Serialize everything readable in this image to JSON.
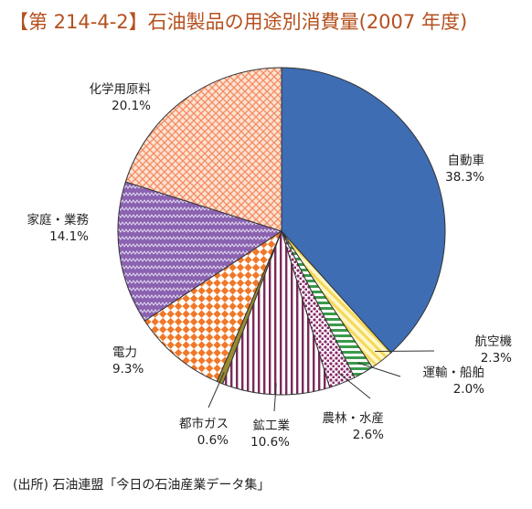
{
  "title": "【第 214-4-2】石油製品の用途別消費量(2007 年度)",
  "source": "(出所) 石油連盟「今日の石油産業データ集」",
  "chart_data": {
    "type": "pie",
    "title": "【第 214-4-2】石油製品の用途別消費量(2007 年度)",
    "start_angle_deg": 0,
    "direction": "clockwise",
    "slices": [
      {
        "label": "自動車",
        "value": 38.3,
        "value_label": "38.3%",
        "color": "#3f6db4",
        "pattern": "solid"
      },
      {
        "label": "航空機",
        "value": 2.3,
        "value_label": "2.3%",
        "color": "#f5d85a",
        "pattern": "diagonal-stripes"
      },
      {
        "label": "運輸・船舶",
        "value": 2.0,
        "value_label": "2.0%",
        "color": "#3a9a4a",
        "pattern": "horizontal-stripes"
      },
      {
        "label": "農林・水産",
        "value": 2.6,
        "value_label": "2.6%",
        "color": "#8a2a6a",
        "pattern": "dots"
      },
      {
        "label": "鉱工業",
        "value": 10.6,
        "value_label": "10.6%",
        "color": "#7a2a5a",
        "pattern": "vertical-stripes"
      },
      {
        "label": "都市ガス",
        "value": 0.6,
        "value_label": "0.6%",
        "color": "#9a8a30",
        "pattern": "solid"
      },
      {
        "label": "電力",
        "value": 9.3,
        "value_label": "9.3%",
        "color": "#f07828",
        "pattern": "checker"
      },
      {
        "label": "家庭・業務",
        "value": 14.1,
        "value_label": "14.1%",
        "color": "#8a62b0",
        "pattern": "zigzag"
      },
      {
        "label": "化学用原料",
        "value": 20.1,
        "value_label": "20.1%",
        "color": "#f48a60",
        "pattern": "crosshatch"
      }
    ],
    "legend": "none"
  }
}
